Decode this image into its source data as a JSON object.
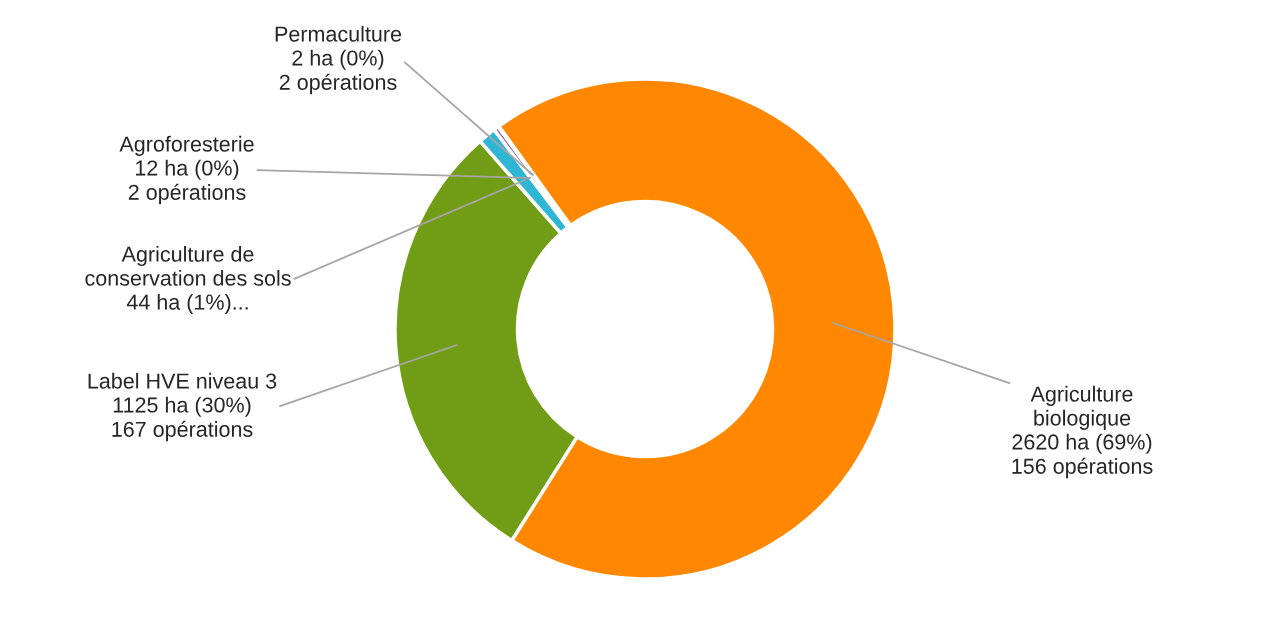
{
  "chart_data": {
    "type": "donut",
    "categories": [
      "Agriculture\nbiologique",
      "Label HVE niveau 3",
      "Agriculture de\nconservation des sols",
      "Agroforesterie",
      "Permaculture"
    ],
    "values": [
      2620,
      1125,
      44,
      12,
      2
    ],
    "colors": [
      "#ff8800",
      "#719c16",
      "#2eb6d4",
      "#7f5fa8",
      "#e0457b"
    ],
    "value_labels": [
      "2620 ha (69%)\n156 opérations",
      "1125 ha (30%)\n167 opérations",
      "44 ha (1%)...",
      "12 ha (0%)\n2 opérations",
      "2 ha (0%)\n2 opérations"
    ],
    "legend": false
  }
}
